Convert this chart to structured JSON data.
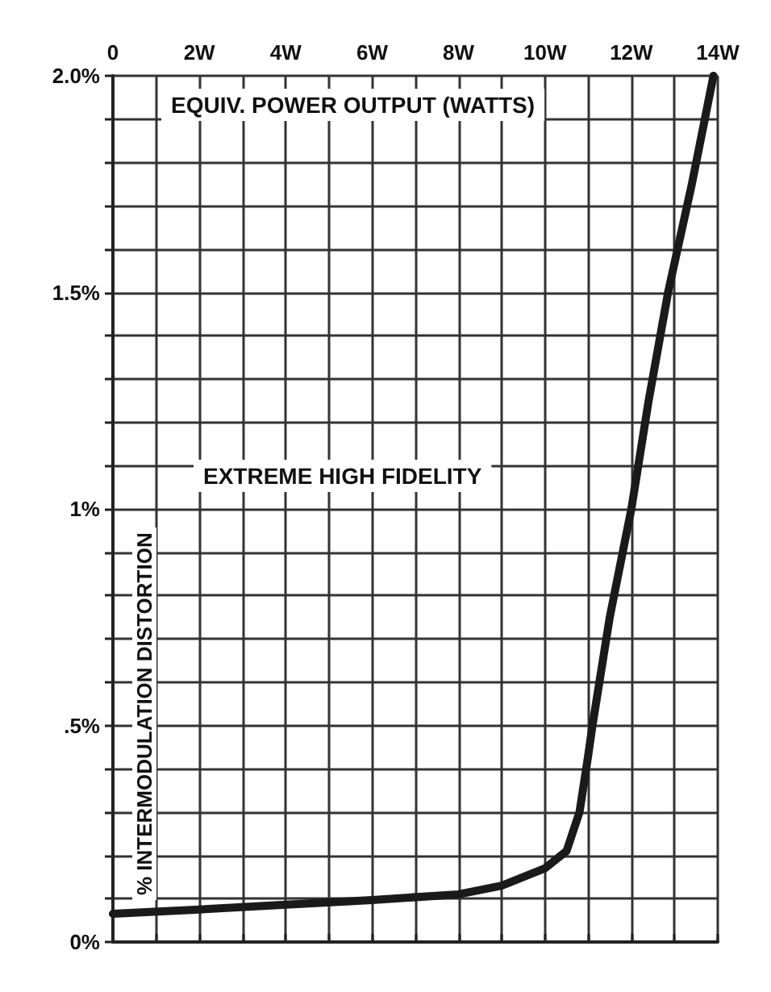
{
  "chart_data": {
    "type": "line",
    "xlabel": "EQUIV. POWER OUTPUT (WATTS)",
    "ylabel": "% INTERMODULATION DISTORTION",
    "annotations": [
      "EXTREME HIGH FIDELITY"
    ],
    "series": [
      {
        "color": "#1a1a1a",
        "x": [
          0,
          2,
          4,
          6,
          8,
          9,
          10,
          10.5,
          10.8,
          11,
          11.1,
          11.5,
          12,
          12.4,
          12.85,
          13.4,
          13.9
        ],
        "values": [
          0.065,
          0.075,
          0.086,
          0.097,
          0.11,
          0.13,
          0.17,
          0.21,
          0.3,
          0.43,
          0.5,
          0.75,
          1.0,
          1.25,
          1.5,
          1.75,
          2.0
        ]
      }
    ],
    "xlim": [
      0,
      14
    ],
    "xticks": [
      0,
      {
        "value": 1,
        "label": null
      },
      {
        "value": 2,
        "label": "2W"
      },
      {
        "value": 3,
        "label": null
      },
      {
        "value": 4,
        "label": "4W"
      },
      {
        "value": 5,
        "label": null
      },
      {
        "value": 6,
        "label": "6W"
      },
      {
        "value": 7,
        "label": null
      },
      {
        "value": 8,
        "label": "8W"
      },
      {
        "value": 9,
        "label": null
      },
      {
        "value": 10,
        "label": "10W"
      },
      {
        "value": 11,
        "label": null
      },
      {
        "value": 12,
        "label": "12W"
      },
      {
        "value": 13,
        "label": null
      },
      {
        "value": 14,
        "label": "14W"
      }
    ],
    "ylim": [
      0,
      2
    ],
    "yticks": [
      {
        "value": 0,
        "label": "0%"
      },
      {
        "value": 0.1,
        "label": null
      },
      {
        "value": 0.2,
        "label": null
      },
      {
        "value": 0.3,
        "label": null
      },
      {
        "value": 0.4,
        "label": null
      },
      {
        "value": 0.5,
        "label": ".5%"
      },
      {
        "value": 0.6,
        "label": null
      },
      {
        "value": 0.7,
        "label": null
      },
      {
        "value": 0.8,
        "label": null
      },
      {
        "value": 0.9,
        "label": null
      },
      {
        "value": 1,
        "label": "1%"
      },
      {
        "value": 1.1,
        "label": null
      },
      {
        "value": 1.2,
        "label": null
      },
      {
        "value": 1.3,
        "label": null
      },
      {
        "value": 1.4,
        "label": null
      },
      {
        "value": 1.5,
        "label": "1.5%"
      },
      {
        "value": 1.6,
        "label": null
      },
      {
        "value": 1.7,
        "label": null
      },
      {
        "value": 1.8,
        "label": null
      },
      {
        "value": 1.9,
        "label": null
      },
      {
        "value": 2,
        "label": "2.0%"
      }
    ],
    "grid": true,
    "marker": "none",
    "line_style": "solid"
  }
}
